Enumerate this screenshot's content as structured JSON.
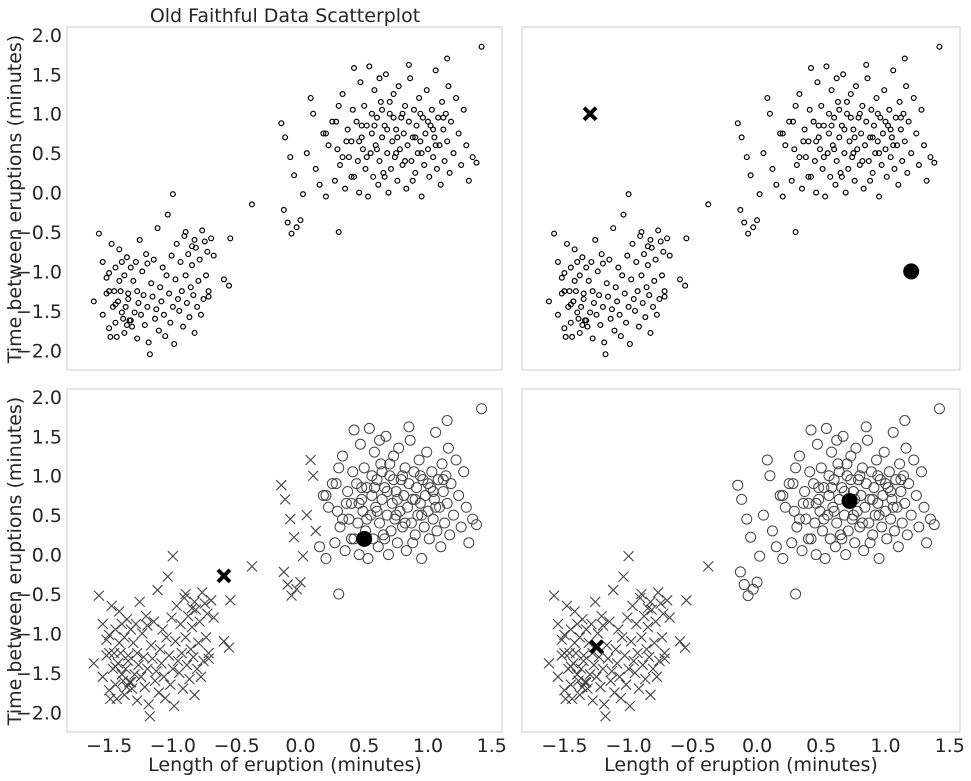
{
  "figure": {
    "title": "Old Faithful Data Scatterplot",
    "xlabel": "Length of eruption (minutes)",
    "ylabel": "Time between eruptions (minutes)"
  },
  "chart_data": [
    {
      "type": "scatter",
      "panel": "top-left",
      "title": "Old Faithful Data Scatterplot",
      "xlabel": "",
      "ylabel": "Time between eruptions (minutes)",
      "xlim": [
        -1.83,
        1.58
      ],
      "ylim": [
        -2.25,
        2.1
      ],
      "xticks": [],
      "yticks": [
        -2.0,
        -1.5,
        -1.0,
        -0.5,
        0.0,
        0.5,
        1.0,
        1.5,
        2.0
      ],
      "grid": false,
      "series": [
        {
          "marker": "small-open-circle",
          "points": "all"
        }
      ],
      "markers": []
    },
    {
      "type": "scatter",
      "panel": "top-right",
      "xlabel": "",
      "ylabel": "",
      "xlim": [
        -1.83,
        1.58
      ],
      "ylim": [
        -2.25,
        2.1
      ],
      "xticks": [],
      "yticks": [],
      "grid": false,
      "series": [
        {
          "marker": "small-open-circle",
          "points": "all"
        }
      ],
      "markers": [
        {
          "marker": "bold-x",
          "x": -1.3,
          "y": 1.0
        },
        {
          "marker": "filled-circle",
          "x": 1.2,
          "y": -1.0
        }
      ]
    },
    {
      "type": "scatter",
      "panel": "bottom-left",
      "xlabel": "Length of eruption (minutes)",
      "ylabel": "Time between eruptions (minutes)",
      "xlim": [
        -1.83,
        1.58
      ],
      "ylim": [
        -2.25,
        2.1
      ],
      "xticks": [
        -1.5,
        -1.0,
        -0.5,
        0.0,
        0.5,
        1.0,
        1.5
      ],
      "yticks": [
        -2.0,
        -1.5,
        -1.0,
        -0.5,
        0.0,
        0.5,
        1.0,
        1.5,
        2.0
      ],
      "grid": false,
      "series": [
        {
          "marker": "x",
          "points": "cluster-a",
          "rule": "x<0.15"
        },
        {
          "marker": "open-circle",
          "points": "cluster-b",
          "rule": "x>=0.15"
        }
      ],
      "markers": [
        {
          "marker": "bold-x",
          "x": -0.6,
          "y": -0.27
        },
        {
          "marker": "filled-circle",
          "x": 0.5,
          "y": 0.2
        }
      ]
    },
    {
      "type": "scatter",
      "panel": "bottom-right",
      "xlabel": "Length of eruption (minutes)",
      "ylabel": "",
      "xlim": [
        -1.83,
        1.58
      ],
      "ylim": [
        -2.25,
        2.1
      ],
      "xticks": [
        -1.5,
        -1.0,
        -0.5,
        0.0,
        0.5,
        1.0,
        1.5
      ],
      "yticks": [],
      "grid": false,
      "series": [
        {
          "marker": "x",
          "points": "cluster-a",
          "rule": "x<-0.3"
        },
        {
          "marker": "open-circle",
          "points": "cluster-b",
          "rule": "x>=-0.3"
        }
      ],
      "markers": [
        {
          "marker": "bold-x",
          "x": -1.25,
          "y": -1.17
        },
        {
          "marker": "filled-circle",
          "x": 0.72,
          "y": 0.68
        }
      ]
    }
  ],
  "points": [
    [
      -1.62,
      -1.38
    ],
    [
      -1.58,
      -0.52
    ],
    [
      -1.55,
      -1.55
    ],
    [
      -1.55,
      -0.88
    ],
    [
      -1.52,
      -1.28
    ],
    [
      -1.52,
      -1.08
    ],
    [
      -1.5,
      -1.25
    ],
    [
      -1.5,
      -1.72
    ],
    [
      -1.49,
      -1.83
    ],
    [
      -1.48,
      -0.65
    ],
    [
      -1.47,
      -1.45
    ],
    [
      -1.46,
      -1.25
    ],
    [
      -1.45,
      -0.95
    ],
    [
      -1.45,
      -1.65
    ],
    [
      -1.44,
      -1.83
    ],
    [
      -1.43,
      -1.38
    ],
    [
      -1.42,
      -1.12
    ],
    [
      -1.42,
      -0.72
    ],
    [
      -1.41,
      -1.25
    ],
    [
      -1.4,
      -1.52
    ],
    [
      -1.4,
      -0.88
    ],
    [
      -1.39,
      -1.6
    ],
    [
      -1.38,
      -1.78
    ],
    [
      -1.38,
      -1.05
    ],
    [
      -1.37,
      -1.45
    ],
    [
      -1.36,
      -0.82
    ],
    [
      -1.35,
      -1.28
    ],
    [
      -1.35,
      -1.35
    ],
    [
      -1.34,
      -1.62
    ],
    [
      -1.33,
      -0.95
    ],
    [
      -1.32,
      -1.7
    ],
    [
      -1.31,
      -1.12
    ],
    [
      -1.3,
      -1.52
    ],
    [
      -1.29,
      -0.88
    ],
    [
      -1.28,
      -1.85
    ],
    [
      -1.28,
      -1.25
    ],
    [
      -1.27,
      -1.4
    ],
    [
      -1.26,
      -0.6
    ],
    [
      -1.25,
      -1.55
    ],
    [
      -1.24,
      -1.0
    ],
    [
      -1.23,
      -1.3
    ],
    [
      -1.22,
      -1.68
    ],
    [
      -1.21,
      -0.78
    ],
    [
      -1.2,
      -1.45
    ],
    [
      -1.19,
      -1.9
    ],
    [
      -1.18,
      -2.05
    ],
    [
      -1.17,
      -1.15
    ],
    [
      -1.16,
      -1.32
    ],
    [
      -1.15,
      -0.85
    ],
    [
      -1.14,
      -1.6
    ],
    [
      -1.13,
      -1.48
    ],
    [
      -1.12,
      -0.45
    ],
    [
      -1.11,
      -1.75
    ],
    [
      -1.1,
      -1.2
    ],
    [
      -1.09,
      -1.38
    ],
    [
      -1.08,
      -0.95
    ],
    [
      -1.07,
      -1.55
    ],
    [
      -1.06,
      -1.82
    ],
    [
      -1.05,
      -1.05
    ],
    [
      -1.04,
      -0.28
    ],
    [
      -1.03,
      -1.28
    ],
    [
      -1.02,
      -1.65
    ],
    [
      -1.01,
      -0.8
    ],
    [
      -1.0,
      -1.45
    ],
    [
      -0.99,
      -1.92
    ],
    [
      -0.98,
      -1.1
    ],
    [
      -0.97,
      -0.65
    ],
    [
      -0.96,
      -1.35
    ],
    [
      -0.95,
      -1.5
    ],
    [
      -0.94,
      -0.88
    ],
    [
      -0.93,
      -1.25
    ],
    [
      -0.92,
      -1.7
    ],
    [
      -0.91,
      -0.55
    ],
    [
      -0.9,
      -1.05
    ],
    [
      -0.89,
      -1.4
    ],
    [
      -0.88,
      -0.78
    ],
    [
      -0.87,
      -1.58
    ],
    [
      -0.86,
      -1.2
    ],
    [
      -0.85,
      -0.92
    ],
    [
      -0.84,
      -1.3
    ],
    [
      -0.83,
      -1.78
    ],
    [
      -0.82,
      -0.7
    ],
    [
      -0.81,
      -1.45
    ],
    [
      -0.8,
      -1.12
    ],
    [
      -0.79,
      -0.85
    ],
    [
      -0.78,
      -1.55
    ],
    [
      -0.77,
      -0.48
    ],
    [
      -0.76,
      -1.35
    ],
    [
      -0.75,
      -0.62
    ],
    [
      -0.74,
      -1.05
    ],
    [
      -0.73,
      -0.75
    ],
    [
      -0.72,
      -1.25
    ],
    [
      -0.7,
      -0.58
    ],
    [
      -0.68,
      -0.8
    ],
    [
      -0.85,
      -0.68
    ],
    [
      -1.45,
      -1.42
    ],
    [
      -1.33,
      -1.62
    ],
    [
      -1.2,
      -0.9
    ],
    [
      -1.5,
      -1.02
    ],
    [
      -1.36,
      -1.68
    ],
    [
      -1.0,
      -0.02
    ],
    [
      -0.9,
      -0.5
    ],
    [
      -0.83,
      -0.6
    ],
    [
      -0.55,
      -0.58
    ],
    [
      -0.6,
      -1.1
    ],
    [
      -0.56,
      -1.18
    ],
    [
      -0.72,
      -1.32
    ],
    [
      -0.38,
      -0.15
    ],
    [
      -0.13,
      -0.22
    ],
    [
      -0.1,
      -0.38
    ],
    [
      -0.07,
      -0.52
    ],
    [
      -0.03,
      -0.44
    ],
    [
      0.0,
      -0.35
    ],
    [
      0.3,
      -0.5
    ],
    [
      -0.15,
      0.88
    ],
    [
      -0.12,
      0.7
    ],
    [
      -0.08,
      0.45
    ],
    [
      -0.05,
      0.22
    ],
    [
      0.02,
      -0.02
    ],
    [
      0.05,
      0.5
    ],
    [
      0.08,
      1.2
    ],
    [
      0.1,
      1.0
    ],
    [
      0.12,
      0.3
    ],
    [
      0.15,
      0.1
    ],
    [
      0.18,
      0.75
    ],
    [
      0.2,
      -0.05
    ],
    [
      0.22,
      0.6
    ],
    [
      0.25,
      0.9
    ],
    [
      0.27,
      0.15
    ],
    [
      0.29,
      0.55
    ],
    [
      0.31,
      0.35
    ],
    [
      0.33,
      1.25
    ],
    [
      0.35,
      0.05
    ],
    [
      0.37,
      0.8
    ],
    [
      0.38,
      0.45
    ],
    [
      0.4,
      0.65
    ],
    [
      0.41,
      1.05
    ],
    [
      0.42,
      0.2
    ],
    [
      0.44,
      0.9
    ],
    [
      0.45,
      0.4
    ],
    [
      0.46,
      0.0
    ],
    [
      0.47,
      1.4
    ],
    [
      0.48,
      0.7
    ],
    [
      0.49,
      0.55
    ],
    [
      0.5,
      1.1
    ],
    [
      0.51,
      0.3
    ],
    [
      0.52,
      0.85
    ],
    [
      0.53,
      -0.05
    ],
    [
      0.54,
      1.6
    ],
    [
      0.55,
      0.5
    ],
    [
      0.56,
      0.75
    ],
    [
      0.57,
      0.2
    ],
    [
      0.58,
      1.3
    ],
    [
      0.59,
      0.6
    ],
    [
      0.6,
      0.95
    ],
    [
      0.61,
      0.1
    ],
    [
      0.62,
      0.4
    ],
    [
      0.63,
      1.15
    ],
    [
      0.64,
      0.7
    ],
    [
      0.65,
      0.25
    ],
    [
      0.66,
      0.85
    ],
    [
      0.67,
      1.5
    ],
    [
      0.68,
      0.5
    ],
    [
      0.69,
      0.0
    ],
    [
      0.7,
      1.0
    ],
    [
      0.71,
      0.3
    ],
    [
      0.72,
      0.65
    ],
    [
      0.73,
      1.25
    ],
    [
      0.74,
      0.45
    ],
    [
      0.75,
      0.8
    ],
    [
      0.76,
      0.15
    ],
    [
      0.77,
      1.35
    ],
    [
      0.78,
      0.55
    ],
    [
      0.79,
      0.95
    ],
    [
      0.8,
      0.35
    ],
    [
      0.81,
      0.75
    ],
    [
      0.82,
      1.1
    ],
    [
      0.83,
      0.05
    ],
    [
      0.84,
      0.6
    ],
    [
      0.85,
      0.9
    ],
    [
      0.86,
      1.45
    ],
    [
      0.87,
      0.4
    ],
    [
      0.88,
      0.7
    ],
    [
      0.89,
      1.05
    ],
    [
      0.9,
      0.25
    ],
    [
      0.91,
      0.85
    ],
    [
      0.92,
      0.5
    ],
    [
      0.93,
      1.2
    ],
    [
      0.94,
      0.65
    ],
    [
      0.95,
      -0.05
    ],
    [
      0.96,
      0.95
    ],
    [
      0.97,
      0.35
    ],
    [
      0.98,
      0.75
    ],
    [
      0.99,
      1.3
    ],
    [
      1.0,
      0.55
    ],
    [
      1.01,
      0.2
    ],
    [
      1.02,
      0.85
    ],
    [
      1.03,
      1.05
    ],
    [
      1.04,
      0.45
    ],
    [
      1.05,
      0.7
    ],
    [
      1.06,
      1.55
    ],
    [
      1.07,
      0.3
    ],
    [
      1.08,
      0.95
    ],
    [
      1.09,
      0.6
    ],
    [
      1.1,
      0.1
    ],
    [
      1.11,
      1.15
    ],
    [
      1.12,
      0.8
    ],
    [
      1.13,
      0.4
    ],
    [
      1.14,
      1.0
    ],
    [
      1.15,
      0.65
    ],
    [
      1.16,
      1.35
    ],
    [
      1.17,
      0.25
    ],
    [
      1.18,
      0.9
    ],
    [
      1.2,
      0.5
    ],
    [
      1.22,
      1.2
    ],
    [
      1.24,
      0.75
    ],
    [
      1.26,
      0.35
    ],
    [
      1.28,
      1.05
    ],
    [
      1.3,
      0.6
    ],
    [
      1.32,
      0.15
    ],
    [
      1.35,
      0.45
    ],
    [
      1.38,
      0.38
    ],
    [
      1.42,
      1.85
    ],
    [
      1.15,
      1.7
    ],
    [
      0.85,
      1.62
    ],
    [
      0.42,
      1.58
    ],
    [
      0.62,
      1.45
    ],
    [
      0.3,
      1.1
    ],
    [
      0.2,
      0.75
    ],
    [
      0.48,
      0.85
    ],
    [
      0.66,
      0.2
    ],
    [
      0.56,
      1.0
    ],
    [
      0.36,
      0.65
    ],
    [
      0.76,
      0.7
    ],
    [
      0.88,
      0.15
    ],
    [
      1.0,
      0.9
    ],
    [
      0.6,
      0.55
    ],
    [
      0.7,
      1.15
    ],
    [
      0.82,
      0.4
    ],
    [
      0.94,
      1.0
    ],
    [
      1.06,
      0.6
    ],
    [
      0.52,
      0.45
    ],
    [
      0.73,
      0.95
    ],
    [
      0.95,
      0.5
    ],
    [
      0.4,
      0.2
    ],
    [
      0.28,
      0.9
    ],
    [
      0.33,
      0.45
    ],
    [
      1.12,
      0.95
    ],
    [
      0.68,
      0.8
    ],
    [
      0.8,
      1.0
    ],
    [
      0.58,
      0.85
    ],
    [
      0.46,
      0.65
    ],
    [
      0.9,
      0.7
    ],
    [
      1.04,
      0.8
    ],
    [
      0.75,
      0.5
    ],
    [
      0.64,
      1.05
    ]
  ]
}
